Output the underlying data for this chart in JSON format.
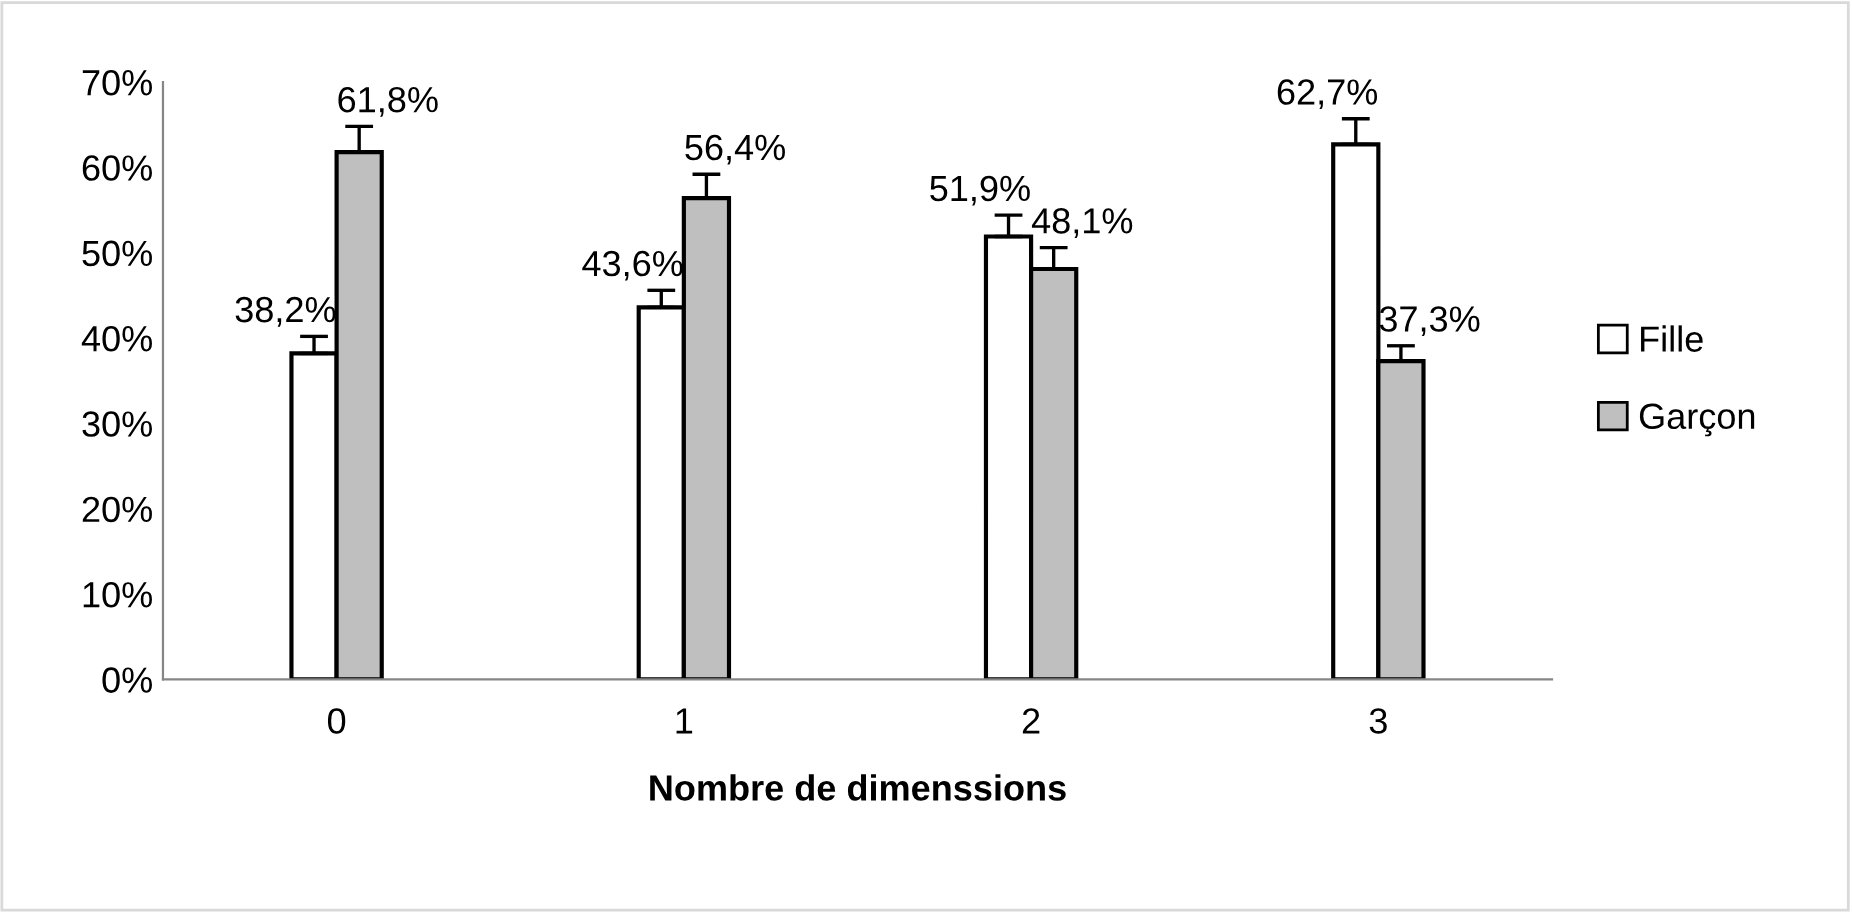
{
  "chart_data": {
    "type": "bar",
    "xlabel": "Nombre de dimenssions",
    "categories": [
      "0",
      "1",
      "2",
      "3"
    ],
    "series": [
      {
        "name": "Fille",
        "color": "#ffffff",
        "values": [
          38.2,
          43.6,
          51.9,
          62.7
        ],
        "value_labels": [
          "38,2%",
          "43,6%",
          "51,9%",
          "62,7%"
        ],
        "errors": [
          [
            38.2,
            40.2
          ],
          [
            43.6,
            45.6
          ],
          [
            51.9,
            54.4
          ],
          [
            62.7,
            65.7
          ]
        ]
      },
      {
        "name": "Garçon",
        "color": "#bfbfbf",
        "values": [
          61.8,
          56.4,
          48.1,
          37.3
        ],
        "value_labels": [
          "61,8%",
          "56,4%",
          "48,1%",
          "37,3%"
        ],
        "errors": [
          [
            61.8,
            64.8
          ],
          [
            56.4,
            59.2
          ],
          [
            48.1,
            50.6
          ],
          [
            37.3,
            39.1
          ]
        ]
      }
    ],
    "ylim": [
      0,
      70
    ],
    "yticks": [
      {
        "value": 0,
        "label": "0%"
      },
      {
        "value": 10,
        "label": "10%"
      },
      {
        "value": 20,
        "label": "20%"
      },
      {
        "value": 30,
        "label": "30%"
      },
      {
        "value": 40,
        "label": "40%"
      },
      {
        "value": 50,
        "label": "50%"
      },
      {
        "value": 60,
        "label": "60%"
      },
      {
        "value": 70,
        "label": "70%"
      }
    ],
    "grid": false,
    "legend": "right"
  }
}
